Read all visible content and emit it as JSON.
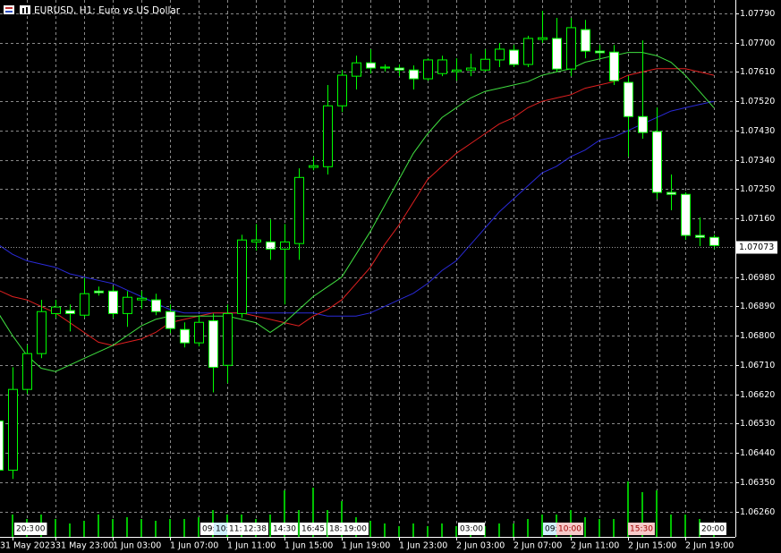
{
  "chart_data": {
    "type": "candlestick",
    "title": "EURUSD, H1: Euro vs US Dollar",
    "categories": [
      null,
      "31 May 2023",
      null,
      null,
      "31 May 23:00",
      null,
      null,
      null,
      "1 Jun 03:00",
      null,
      null,
      null,
      "1 Jun 07:00",
      null,
      null,
      null,
      "1 Jun 11:00",
      null,
      null,
      null,
      "1 Jun 15:00",
      null,
      null,
      null,
      "1 Jun 19:00",
      null,
      null,
      null,
      "1 Jun 23:00",
      null,
      null,
      null,
      "2 Jun 03:00",
      null,
      null,
      null,
      "2 Jun 07:00",
      null,
      null,
      null,
      "2 Jun 11:00",
      null,
      null,
      null,
      "2 Jun 15:00",
      null,
      null,
      null,
      "2 Jun 19:00",
      null,
      null
    ],
    "open": [
      1.06538,
      1.06387,
      1.06635,
      1.06745,
      1.06868,
      1.06877,
      1.06863,
      1.06937,
      1.06937,
      1.06868,
      1.0691,
      1.0691,
      1.06874,
      1.06819,
      1.06778,
      1.06846,
      1.06709,
      1.06868,
      1.07088,
      1.07088,
      1.07066,
      1.07083,
      1.07317,
      1.07319,
      1.07506,
      1.07597,
      1.07638,
      1.07622,
      1.07622,
      1.07616,
      1.07589,
      1.07605,
      1.07611,
      1.07616,
      1.07616,
      1.07647,
      1.07677,
      1.07633,
      1.0771,
      1.07713,
      1.07619,
      1.0774,
      1.07674,
      1.07671,
      1.07578,
      1.07473,
      1.07427,
      1.0724,
      1.07234,
      1.07108,
      1.07102
    ],
    "high": [
      1.06552,
      1.06703,
      1.06772,
      1.0691,
      1.0691,
      1.06896,
      1.06978,
      1.06951,
      1.06951,
      1.06937,
      1.06937,
      1.06929,
      1.06896,
      1.06841,
      1.06863,
      1.06868,
      1.06896,
      1.0711,
      1.07143,
      1.07157,
      1.07143,
      1.07314,
      1.0735,
      1.0757,
      1.07616,
      1.0766,
      1.0768,
      1.07633,
      1.07633,
      1.0763,
      1.07652,
      1.0766,
      1.07652,
      1.07666,
      1.0768,
      1.07699,
      1.07693,
      1.07721,
      1.07798,
      1.07776,
      1.07776,
      1.0777,
      1.07693,
      1.07693,
      1.07597,
      1.07707,
      1.07501,
      1.07295,
      1.0724,
      1.07163,
      1.0711
    ],
    "low": [
      1.06373,
      1.0636,
      1.06621,
      1.06731,
      1.06855,
      1.06813,
      1.06855,
      1.06923,
      1.06855,
      1.06827,
      1.06882,
      1.06863,
      1.06808,
      1.06764,
      1.06767,
      1.06626,
      1.06654,
      1.06855,
      1.07061,
      1.07033,
      1.06896,
      1.07033,
      1.07308,
      1.07295,
      1.07487,
      1.07556,
      1.07605,
      1.07611,
      1.07597,
      1.07556,
      1.07583,
      1.07597,
      1.07583,
      1.07597,
      1.07611,
      1.07625,
      1.07625,
      1.07625,
      1.07699,
      1.07611,
      1.07597,
      1.07652,
      1.07652,
      1.0757,
      1.0735,
      1.07405,
      1.0722,
      1.07185,
      1.07094,
      1.07075,
      1.07066
    ],
    "close": [
      1.06387,
      1.06635,
      1.06745,
      1.06874,
      1.06888,
      1.06868,
      1.06929,
      1.06932,
      1.06868,
      1.06918,
      1.06915,
      1.06874,
      1.06822,
      1.06778,
      1.06841,
      1.06703,
      1.06868,
      1.07094,
      1.07094,
      1.07066,
      1.07088,
      1.07286,
      1.07322,
      1.07506,
      1.076,
      1.07638,
      1.07622,
      1.07625,
      1.07616,
      1.07589,
      1.07647,
      1.07647,
      1.07616,
      1.07622,
      1.07649,
      1.0768,
      1.07633,
      1.07713,
      1.07715,
      1.07619,
      1.07746,
      1.07674,
      1.07669,
      1.07583,
      1.07473,
      1.07424,
      1.0724,
      1.07234,
      1.07108,
      1.07102,
      1.07077
    ],
    "up_color": "#00ff00",
    "bull_fill": "#000000",
    "bear_fill": "#ffffff",
    "series": [
      {
        "color": "#2a2ad8",
        "values": [
          1.0708,
          1.0705,
          1.0703,
          1.0702,
          1.0701,
          1.0699,
          1.0698,
          1.0697,
          1.0696,
          1.0694,
          1.0692,
          1.069,
          1.0688,
          1.0687,
          1.0687,
          1.0687,
          1.0687,
          1.0687,
          1.0687,
          1.0687,
          1.0687,
          1.0687,
          1.0687,
          1.0686,
          1.0686,
          1.0686,
          1.0687,
          1.0689,
          1.0691,
          1.0693,
          1.0696,
          1.07,
          1.0703,
          1.0708,
          1.0713,
          1.0718,
          1.0722,
          1.0726,
          1.073,
          1.0732,
          1.0735,
          1.0737,
          1.074,
          1.0741,
          1.0743,
          1.0745,
          1.0747,
          1.0749,
          1.075,
          1.0751,
          1.0752
        ]
      },
      {
        "color": "#e02020",
        "values": [
          1.0694,
          1.0692,
          1.0691,
          1.0689,
          1.0687,
          1.0684,
          1.0681,
          1.0678,
          1.0677,
          1.0678,
          1.0679,
          1.0681,
          1.0684,
          1.0685,
          1.0686,
          1.0687,
          1.0687,
          1.0687,
          1.0686,
          1.0685,
          1.0684,
          1.0683,
          1.0686,
          1.0688,
          1.0691,
          1.0696,
          1.0701,
          1.0708,
          1.0714,
          1.0721,
          1.0728,
          1.0732,
          1.0736,
          1.0739,
          1.0742,
          1.0745,
          1.0747,
          1.075,
          1.0752,
          1.0753,
          1.0754,
          1.0756,
          1.0757,
          1.0758,
          1.076,
          1.0761,
          1.0762,
          1.0762,
          1.0762,
          1.0761,
          1.076
        ]
      },
      {
        "color": "#40e040",
        "values": [
          1.0687,
          1.068,
          1.0674,
          1.067,
          1.0669,
          1.0671,
          1.0673,
          1.0675,
          1.0677,
          1.068,
          1.0683,
          1.0685,
          1.0686,
          1.0686,
          1.0686,
          1.0686,
          1.0686,
          1.0685,
          1.0684,
          1.0681,
          1.0684,
          1.0688,
          1.0692,
          1.0695,
          1.0698,
          1.0705,
          1.0712,
          1.072,
          1.0728,
          1.0736,
          1.0742,
          1.0747,
          1.075,
          1.0753,
          1.0755,
          1.0756,
          1.0757,
          1.0758,
          1.076,
          1.0761,
          1.0762,
          1.0764,
          1.0765,
          1.0766,
          1.0767,
          1.0767,
          1.0766,
          1.0764,
          1.076,
          1.0755,
          1.075
        ]
      }
    ],
    "volumes": [
      20,
      25,
      20,
      25,
      20,
      15,
      18,
      25,
      20,
      22,
      20,
      18,
      20,
      20,
      22,
      30,
      25,
      25,
      20,
      25,
      52,
      30,
      55,
      30,
      40,
      22,
      18,
      15,
      12,
      15,
      12,
      15,
      12,
      15,
      12,
      15,
      15,
      20,
      25,
      25,
      30,
      22,
      20,
      20,
      62,
      50,
      52,
      25,
      25,
      20,
      15
    ],
    "volume_color": "#00c000",
    "current_price": 1.07073,
    "ylim": [
      1.06182,
      1.07831
    ],
    "yticks": [
      {
        "value": 1.0779,
        "label": "1.07790"
      },
      {
        "value": 1.077,
        "label": "1.07700"
      },
      {
        "value": 1.0761,
        "label": "1.07610"
      },
      {
        "value": 1.0752,
        "label": "1.07520"
      },
      {
        "value": 1.0743,
        "label": "1.07430"
      },
      {
        "value": 1.0734,
        "label": "1.07340"
      },
      {
        "value": 1.0725,
        "label": "1.07250"
      },
      {
        "value": 1.0716,
        "label": "1.07160"
      },
      {
        "value": 1.0698,
        "label": "1.06980"
      },
      {
        "value": 1.0689,
        "label": "1.06890"
      },
      {
        "value": 1.068,
        "label": "1.06800"
      },
      {
        "value": 1.0671,
        "label": "1.06710"
      },
      {
        "value": 1.0662,
        "label": "1.06620"
      },
      {
        "value": 1.0653,
        "label": "1.06530"
      },
      {
        "value": 1.0644,
        "label": "1.06440"
      },
      {
        "value": 1.0635,
        "label": "1.06350"
      },
      {
        "value": 1.0626,
        "label": "1.06260"
      }
    ],
    "grid": true,
    "markers": [
      "20:30",
      "00",
      "09:",
      "10:",
      "11:",
      "12:38",
      "14:30",
      "16:45",
      "18:",
      "19:00",
      "03:00",
      "09:",
      "10:00",
      "15:30",
      "20:00"
    ]
  }
}
